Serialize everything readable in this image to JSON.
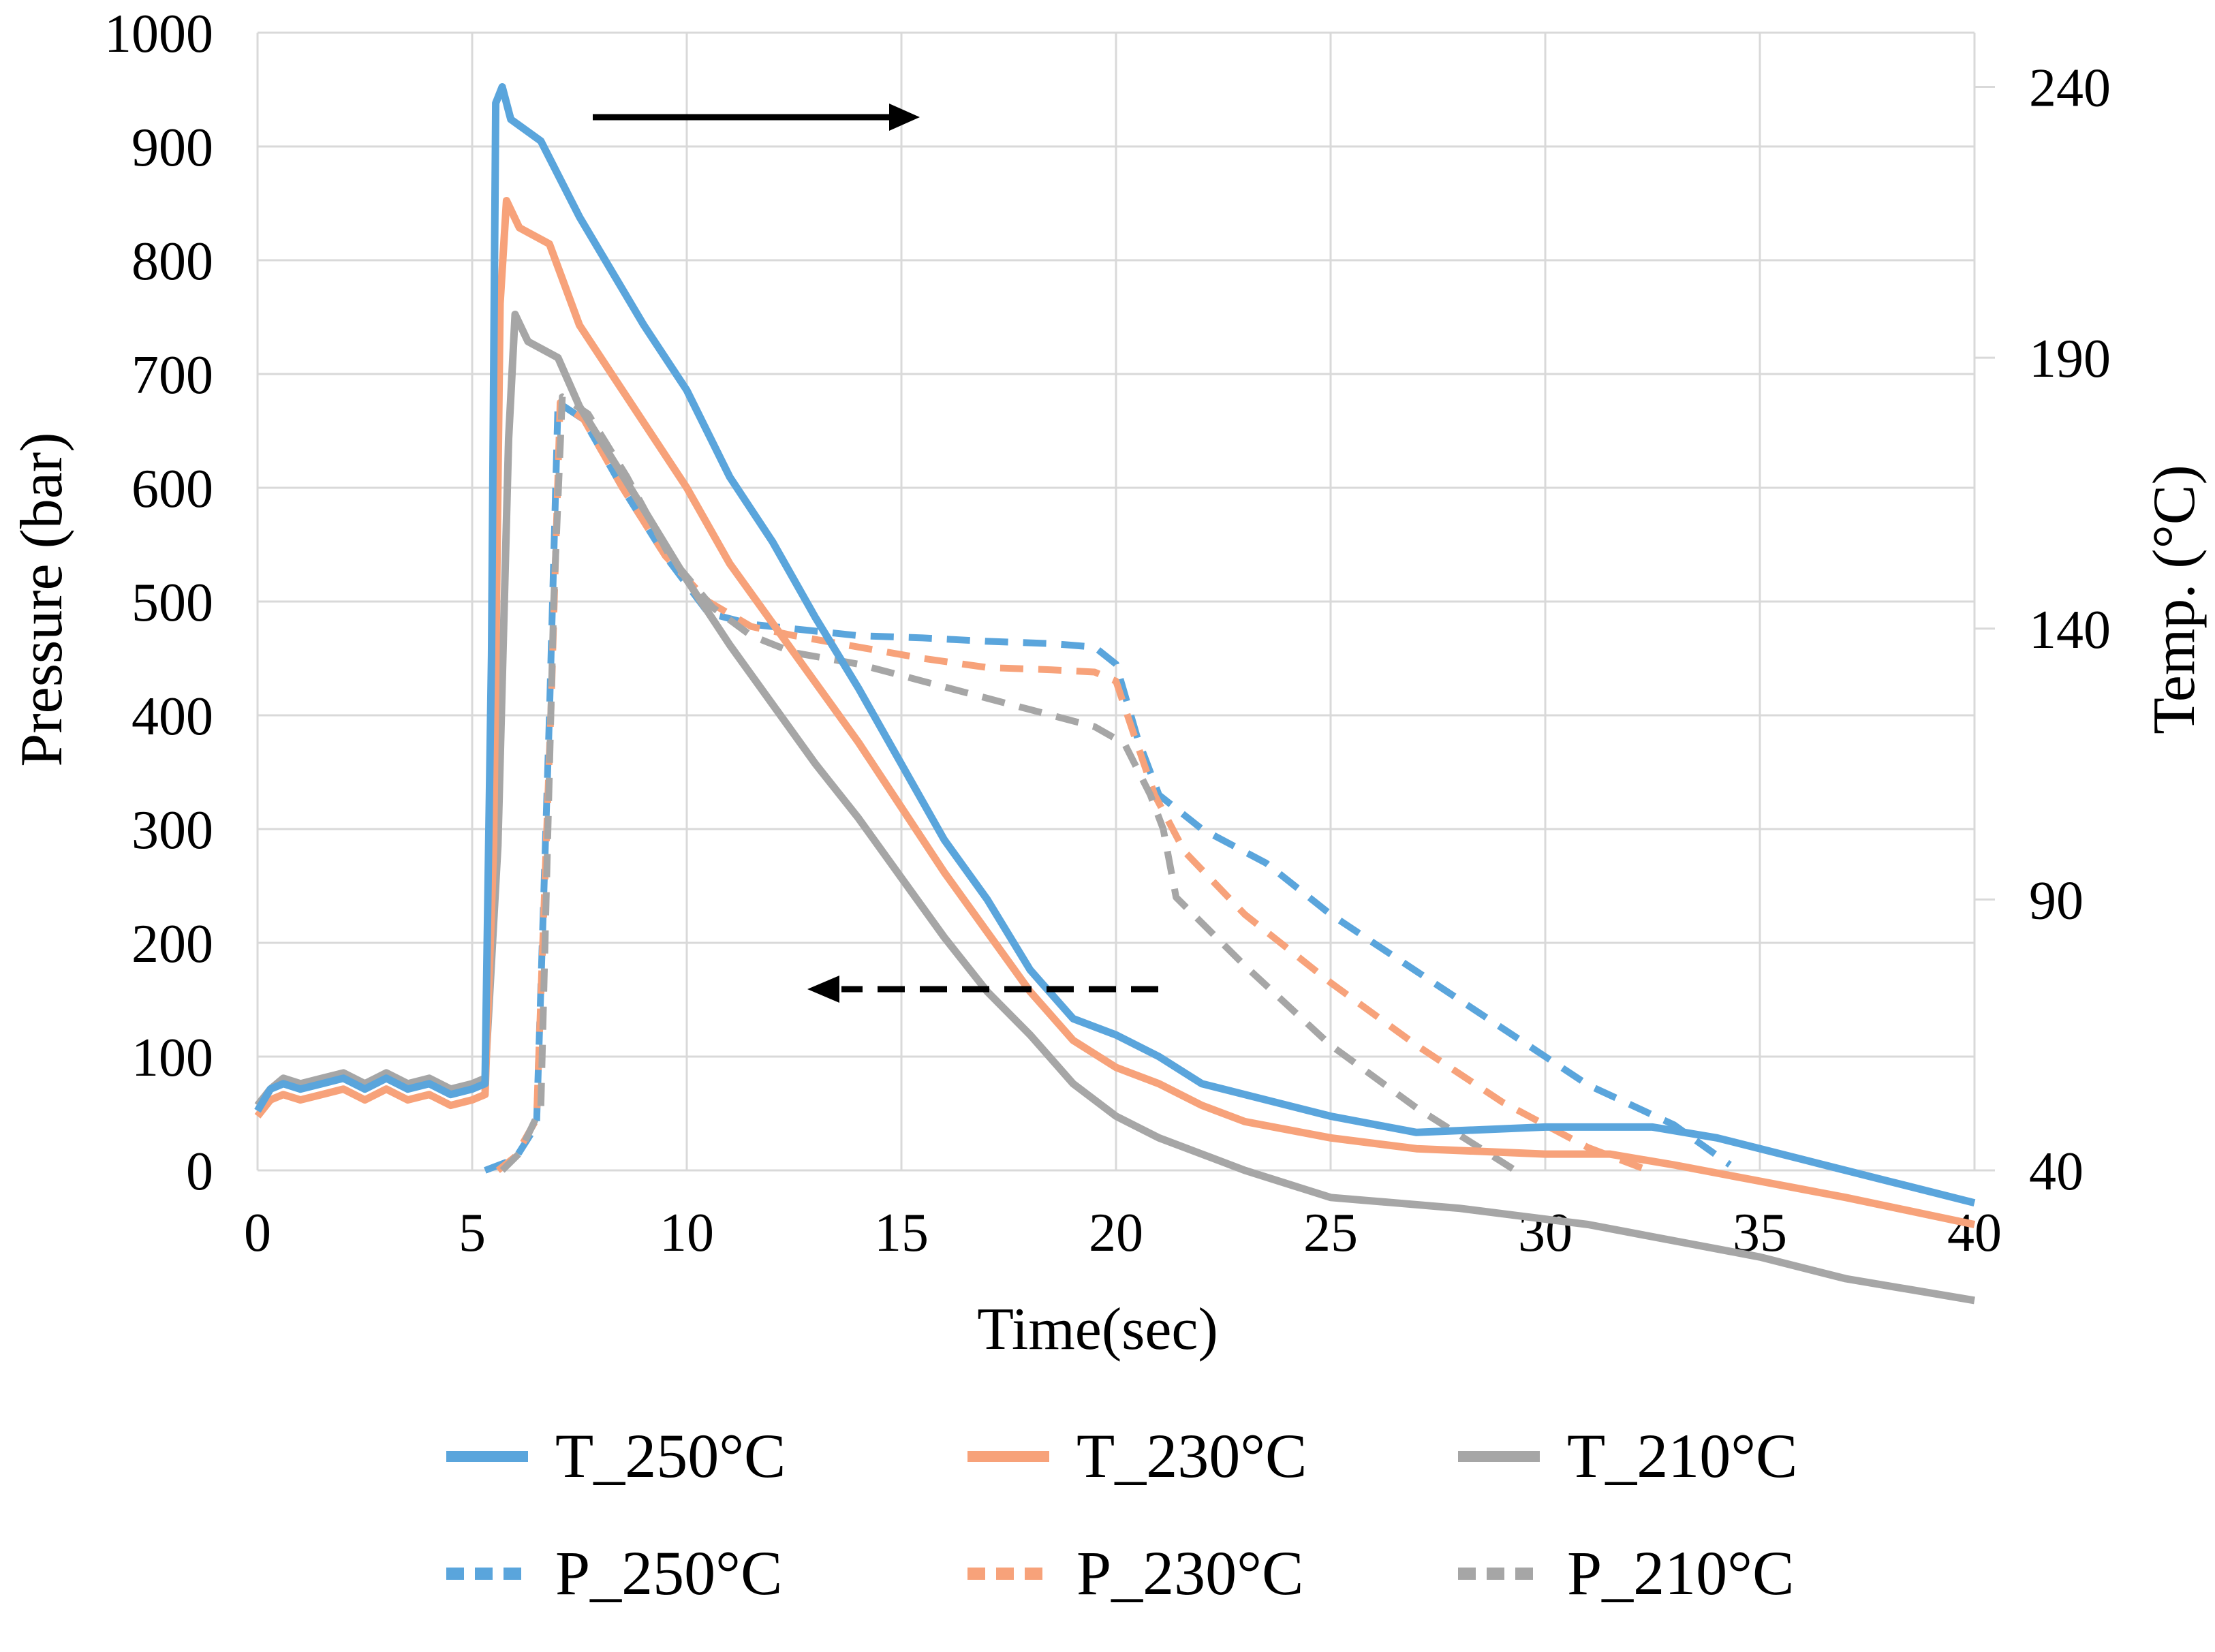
{
  "chart_data": {
    "type": "line",
    "title": "",
    "xlabel": "Time(sec)",
    "ylabel_left": "Pressure (bar)",
    "ylabel_right": "Temp. (°C)",
    "xlim": [
      0,
      40
    ],
    "ylim_left": [
      0,
      1000
    ],
    "ylim_right": [
      40,
      250
    ],
    "x_ticks": [
      "0",
      "5",
      "10",
      "15",
      "20",
      "25",
      "30",
      "35",
      "40"
    ],
    "y_left_ticks": [
      "0",
      "100",
      "200",
      "300",
      "400",
      "500",
      "600",
      "700",
      "800",
      "900",
      "1000"
    ],
    "y_right_ticks": [
      "40",
      "90",
      "140",
      "190",
      "240"
    ],
    "grid": true,
    "legend_position": "bottom",
    "annotations": [
      {
        "type": "arrow",
        "style": "solid",
        "direction": "right",
        "meaning": "temperature curves read on right axis"
      },
      {
        "type": "arrow",
        "style": "dashed",
        "direction": "left",
        "meaning": "pressure curves read on left axis"
      }
    ],
    "series": [
      {
        "name": "T_250°C",
        "axis": "right",
        "style": "solid",
        "color": "#5aa5dc",
        "x": [
          0,
          0.3,
          0.6,
          1,
          1.5,
          2,
          2.5,
          3,
          3.5,
          4,
          4.5,
          5,
          5.3,
          5.45,
          5.55,
          5.7,
          5.9,
          6.6,
          7.5,
          9,
          10,
          11,
          12,
          13,
          14,
          15,
          16,
          17,
          18,
          19,
          20,
          21,
          22,
          23,
          25,
          27,
          30,
          32.5,
          34,
          36,
          38,
          40
        ],
        "y": [
          51,
          55,
          56,
          55,
          56,
          57,
          55,
          57,
          55,
          56,
          54,
          55,
          56,
          135,
          237,
          240,
          234,
          230,
          216,
          196,
          184,
          168,
          156,
          142,
          129,
          115,
          101,
          90,
          77,
          68,
          65,
          61,
          56,
          54,
          50,
          47,
          48,
          48,
          46,
          42,
          38,
          34
        ]
      },
      {
        "name": "T_230°C",
        "axis": "right",
        "style": "solid",
        "color": "#f7a27a",
        "x": [
          0,
          0.3,
          0.6,
          1,
          1.5,
          2,
          2.5,
          3,
          3.5,
          4,
          4.5,
          5,
          5.3,
          5.5,
          5.65,
          5.8,
          6.1,
          6.8,
          7.5,
          9,
          10,
          11,
          12,
          13,
          14,
          15,
          16,
          17,
          18,
          19,
          20,
          21,
          22,
          23,
          25,
          27,
          30,
          31.5,
          33,
          35,
          37,
          40
        ],
        "y": [
          50,
          53,
          54,
          53,
          54,
          55,
          53,
          55,
          53,
          54,
          52,
          53,
          54,
          100,
          200,
          219,
          214,
          211,
          196,
          178,
          166,
          152,
          141,
          130,
          119,
          107,
          95,
          84,
          73,
          64,
          59,
          56,
          52,
          49,
          46,
          44,
          43,
          43,
          41,
          38,
          35,
          30
        ]
      },
      {
        "name": "T_210°C",
        "axis": "right",
        "style": "solid",
        "color": "#a6a6a6",
        "x": [
          0,
          0.3,
          0.6,
          1,
          1.5,
          2,
          2.5,
          3,
          3.5,
          4,
          4.5,
          5,
          5.3,
          5.6,
          5.85,
          6.0,
          6.3,
          7.0,
          7.5,
          9,
          10,
          11,
          12,
          13,
          14,
          15,
          16,
          17,
          18,
          19,
          20,
          21,
          22,
          23,
          25,
          26.5,
          28,
          30,
          31,
          33,
          35,
          37,
          40
        ],
        "y": [
          52,
          55,
          57,
          56,
          57,
          58,
          56,
          58,
          56,
          57,
          55,
          56,
          57,
          100,
          175,
          198,
          193,
          190,
          181,
          162,
          149,
          137,
          126,
          115,
          105,
          94,
          83,
          73,
          65,
          56,
          50,
          46,
          43,
          40,
          35,
          34,
          33,
          31,
          30,
          27,
          24,
          20,
          16
        ]
      },
      {
        "name": "P_250°C",
        "axis": "left",
        "style": "dashed",
        "color": "#5aa5dc",
        "x": [
          5.3,
          6.0,
          6.5,
          6.8,
          7.0,
          7.6,
          8.5,
          9.5,
          10.5,
          11.5,
          12.5,
          14,
          15.5,
          17,
          18.5,
          19.5,
          20.0,
          20.5,
          21.0,
          22,
          23.5,
          25,
          27,
          29,
          31,
          33,
          34.3
        ],
        "y": [
          0,
          10,
          40,
          400,
          675,
          660,
          600,
          540,
          490,
          480,
          476,
          470,
          468,
          465,
          463,
          460,
          445,
          380,
          330,
          300,
          270,
          225,
          175,
          125,
          75,
          40,
          5
        ]
      },
      {
        "name": "P_230°C",
        "axis": "left",
        "style": "dashed",
        "color": "#f7a27a",
        "x": [
          5.6,
          6.0,
          6.5,
          6.85,
          7.05,
          7.6,
          8.5,
          9.5,
          10.5,
          11.5,
          12.5,
          14,
          15.5,
          17,
          18.5,
          19.5,
          20.0,
          20.4,
          20.9,
          21.6,
          23,
          25,
          27,
          29,
          31,
          32.4
        ],
        "y": [
          0,
          12,
          45,
          420,
          675,
          660,
          600,
          540,
          500,
          478,
          470,
          460,
          450,
          442,
          440,
          438,
          430,
          385,
          330,
          280,
          225,
          165,
          110,
          60,
          20,
          0
        ]
      },
      {
        "name": "P_210°C",
        "axis": "left",
        "style": "dashed",
        "color": "#a6a6a6",
        "x": [
          5.7,
          6.1,
          6.6,
          6.9,
          7.1,
          7.7,
          8.6,
          9.6,
          10.6,
          11.5,
          12.5,
          14,
          15.5,
          17,
          18.5,
          19.5,
          20.2,
          20.8,
          21.1,
          21.4,
          23,
          25,
          27,
          29.3
        ],
        "y": [
          0,
          15,
          55,
          500,
          680,
          665,
          610,
          540,
          495,
          470,
          455,
          445,
          430,
          415,
          400,
          390,
          375,
          330,
          300,
          240,
          180,
          110,
          55,
          0
        ]
      }
    ]
  }
}
